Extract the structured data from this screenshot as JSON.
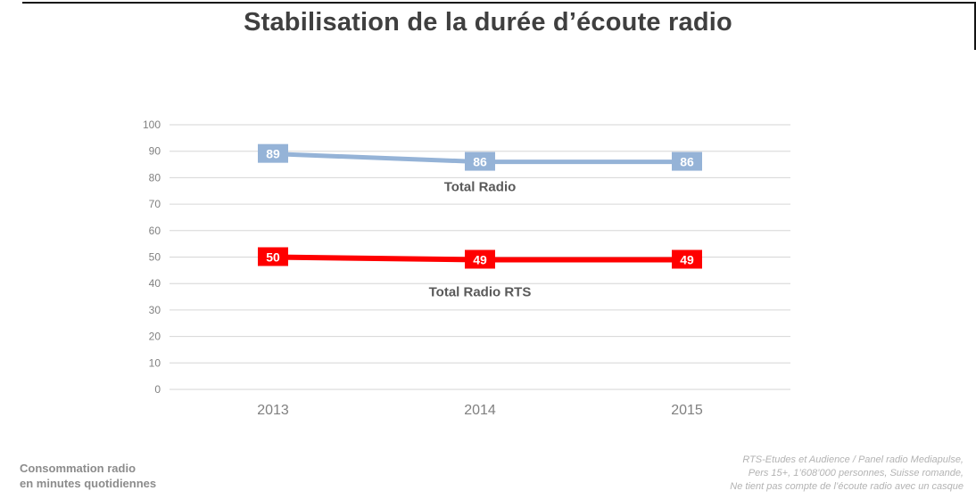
{
  "page": {
    "title": "Stabilisation de la durée d’écoute radio",
    "footer_left_line1": "Consommation radio",
    "footer_left_line2": "en minutes quotidiennes",
    "source_lines": [
      "RTS-Etudes et Audience / Panel radio Mediapulse,",
      "Pers 15+, 1’608’000 personnes, Suisse romande,",
      "Ne tient pas compte de l’écoute radio avec un casque"
    ]
  },
  "chart_data": {
    "type": "line",
    "title": "Stabilisation de la durée d’écoute radio",
    "categories": [
      "2013",
      "2014",
      "2015"
    ],
    "series": [
      {
        "name": "Total Radio",
        "values": [
          89,
          86,
          86
        ],
        "color": "#95b3d7",
        "line_width": 5,
        "name_dy": 33
      },
      {
        "name": "Total Radio RTS",
        "values": [
          50,
          49,
          49
        ],
        "color": "#ff0000",
        "line_width": 6,
        "name_dy": 41
      }
    ],
    "xlabel": "",
    "ylabel": "",
    "ylim": [
      0,
      100
    ],
    "ytick_step": 10,
    "grid": true,
    "legend_position": "inline-labels",
    "colors": {
      "grid": "#d6d6d6",
      "tick_text": "#808080",
      "category_text": "#808080",
      "series_name_text": "#595959",
      "data_label_text": "#ffffff",
      "title_text": "#3f3f3f"
    }
  }
}
